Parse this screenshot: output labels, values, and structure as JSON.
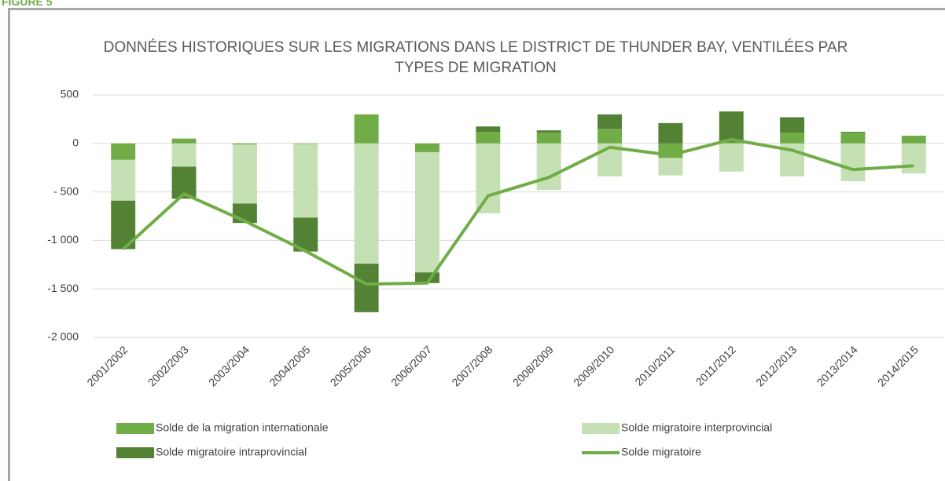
{
  "figure_label": "FIGURE 5",
  "chart_data": {
    "type": "bar",
    "title": "DONNÉES HISTORIQUES SUR LES MIGRATIONS DANS LE DISTRICT DE THUNDER BAY, VENTILÉES PAR TYPES DE MIGRATION",
    "stacked": true,
    "grid": true,
    "categories": [
      "2001/2002",
      "2002/2003",
      "2003/2004",
      "2004/2005",
      "2005/2006",
      "2006/2007",
      "2007/2008",
      "2008/2009",
      "2009/2010",
      "2010/2011",
      "2011/2012",
      "2012/2013",
      "2013/2014",
      "2014/2015"
    ],
    "ylim": [
      -2000,
      500
    ],
    "yticks": [
      {
        "value": -2000,
        "label": "-2 000"
      },
      {
        "value": -1500,
        "label": "-1 500"
      },
      {
        "value": -1000,
        "label": "-1 000"
      },
      {
        "value": -500,
        "label": "- 500"
      },
      0,
      500
    ],
    "series": [
      {
        "name": "Solde de la migration internationale",
        "color": "#70ad47",
        "kind": "bar",
        "values": [
          -170,
          50,
          -10,
          -5,
          300,
          -90,
          120,
          110,
          150,
          -150,
          10,
          110,
          110,
          80
        ]
      },
      {
        "name": "Solde migratoire interprovincial",
        "color": "#c5e0b4",
        "kind": "bar",
        "values": [
          -420,
          -240,
          -610,
          -760,
          -1240,
          -1240,
          -720,
          -480,
          -340,
          -180,
          -290,
          -340,
          -390,
          -310
        ]
      },
      {
        "name": "Solde migratoire intraprovincial",
        "color": "#548235",
        "kind": "bar",
        "values": [
          -500,
          -330,
          -200,
          -350,
          -500,
          -110,
          55,
          25,
          150,
          210,
          320,
          160,
          10,
          0
        ]
      },
      {
        "name": "Solde migratoire",
        "color": "#70ad47",
        "kind": "line",
        "values": [
          -1090,
          -520,
          -800,
          -1110,
          -1450,
          -1440,
          -540,
          -350,
          -40,
          -120,
          40,
          -70,
          -270,
          -230
        ]
      }
    ],
    "legend": "bottom"
  }
}
